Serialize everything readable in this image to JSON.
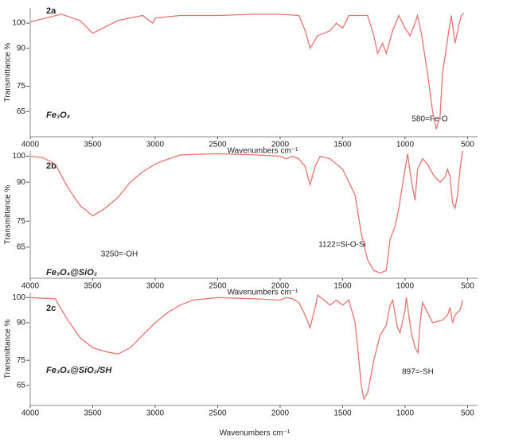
{
  "chart_data": [
    {
      "type": "line",
      "panel_label": "2a",
      "sample": "Fe₃O₄",
      "annotations": [
        "580=Fe-O"
      ],
      "xlabel": "Wavenumbers cm⁻¹",
      "ylabel": "Transmittance %",
      "color": "#e8736f",
      "xlim": [
        4000,
        420
      ],
      "ylim": [
        55,
        106
      ],
      "xticks": [
        4000,
        3500,
        3000,
        2500,
        2000,
        1500,
        1000,
        500
      ],
      "yticks": [
        65,
        75,
        90,
        100
      ],
      "x": [
        4000,
        3750,
        3600,
        3500,
        3300,
        3100,
        3020,
        3000,
        2800,
        2500,
        2200,
        2000,
        1850,
        1800,
        1760,
        1700,
        1650,
        1600,
        1550,
        1500,
        1450,
        1350,
        1300,
        1250,
        1220,
        1180,
        1150,
        1100,
        1050,
        1000,
        960,
        920,
        900,
        870,
        820,
        780,
        750,
        720,
        700,
        650,
        630,
        600,
        570,
        550,
        530
      ],
      "values": [
        100.5,
        103.5,
        101,
        96,
        101,
        103,
        100,
        102,
        103,
        103,
        103.5,
        103.5,
        103,
        97,
        90,
        95,
        96,
        97,
        100,
        98,
        103,
        103,
        103,
        95,
        88,
        92,
        88,
        97,
        103,
        98,
        95,
        100,
        103,
        96,
        80,
        65,
        58,
        63,
        80,
        97,
        103,
        92,
        99,
        103,
        104
      ]
    },
    {
      "type": "line",
      "panel_label": "2b",
      "sample": "Fe₃O₄@SiO₂",
      "annotations": [
        "3250=-OH",
        "1122=Si-O-Si"
      ],
      "xlabel": "Wavenumbers cm⁻¹",
      "ylabel": "Transmittance %",
      "color": "#e8736f",
      "xlim": [
        4000,
        420
      ],
      "ylim": [
        53,
        102
      ],
      "xticks": [
        4000,
        3500,
        3000,
        2500,
        2000,
        1500,
        1000,
        500
      ],
      "yticks": [
        65,
        75,
        90,
        100
      ],
      "x": [
        4000,
        3900,
        3800,
        3700,
        3600,
        3500,
        3400,
        3300,
        3200,
        3100,
        3000,
        2950,
        2800,
        2500,
        2200,
        2000,
        1950,
        1900,
        1850,
        1800,
        1760,
        1720,
        1680,
        1600,
        1500,
        1400,
        1350,
        1300,
        1250,
        1200,
        1150,
        1120,
        1080,
        1050,
        1000,
        980,
        960,
        940,
        920,
        900,
        860,
        820,
        800,
        760,
        720,
        680,
        660,
        640,
        620,
        600,
        580,
        560,
        540
      ],
      "values": [
        100,
        99.5,
        97,
        88,
        81,
        77,
        80,
        84,
        90,
        94,
        97,
        98,
        100.5,
        101,
        100.5,
        100,
        99,
        100,
        99,
        96,
        89,
        96,
        100,
        99,
        95,
        85,
        70,
        60,
        56,
        55,
        56,
        68,
        73,
        80,
        95,
        101,
        94,
        88,
        83,
        95,
        99,
        97,
        95,
        92,
        90,
        92,
        95,
        92,
        82,
        80,
        85,
        95,
        102
      ]
    },
    {
      "type": "line",
      "panel_label": "2c",
      "sample": "Fe₃O₄@SiO₂/SH",
      "annotations": [
        "897=-SH"
      ],
      "xlabel": "Wavenumbers cm⁻¹",
      "ylabel": "Transmittance %",
      "color": "#e8736f",
      "xlim": [
        4000,
        420
      ],
      "ylim": [
        57,
        102
      ],
      "xticks": [
        4000,
        3500,
        3000,
        2500,
        2000,
        1500,
        1000,
        500
      ],
      "yticks": [
        65,
        75,
        90,
        100
      ],
      "x": [
        4000,
        3800,
        3700,
        3600,
        3500,
        3400,
        3300,
        3200,
        3100,
        3000,
        2900,
        2800,
        2700,
        2500,
        2200,
        2000,
        1950,
        1900,
        1850,
        1800,
        1760,
        1720,
        1700,
        1650,
        1600,
        1550,
        1500,
        1450,
        1400,
        1350,
        1330,
        1300,
        1250,
        1200,
        1150,
        1120,
        1100,
        1060,
        1040,
        1000,
        990,
        950,
        920,
        897,
        880,
        860,
        820,
        780,
        700,
        660,
        640,
        620,
        600,
        560,
        540
      ],
      "values": [
        100,
        99.5,
        91,
        84,
        80,
        78.5,
        77.5,
        80,
        85,
        90,
        94,
        97,
        99,
        100,
        99.5,
        99,
        100,
        99.5,
        98,
        93,
        88,
        96,
        101,
        99,
        97,
        99,
        97,
        99,
        90,
        65,
        59.5,
        62,
        75,
        85,
        89,
        97,
        99,
        88,
        86,
        95,
        100,
        86,
        80,
        78,
        90,
        98,
        94,
        90,
        91,
        93,
        96,
        90,
        93,
        95,
        99
      ]
    }
  ]
}
